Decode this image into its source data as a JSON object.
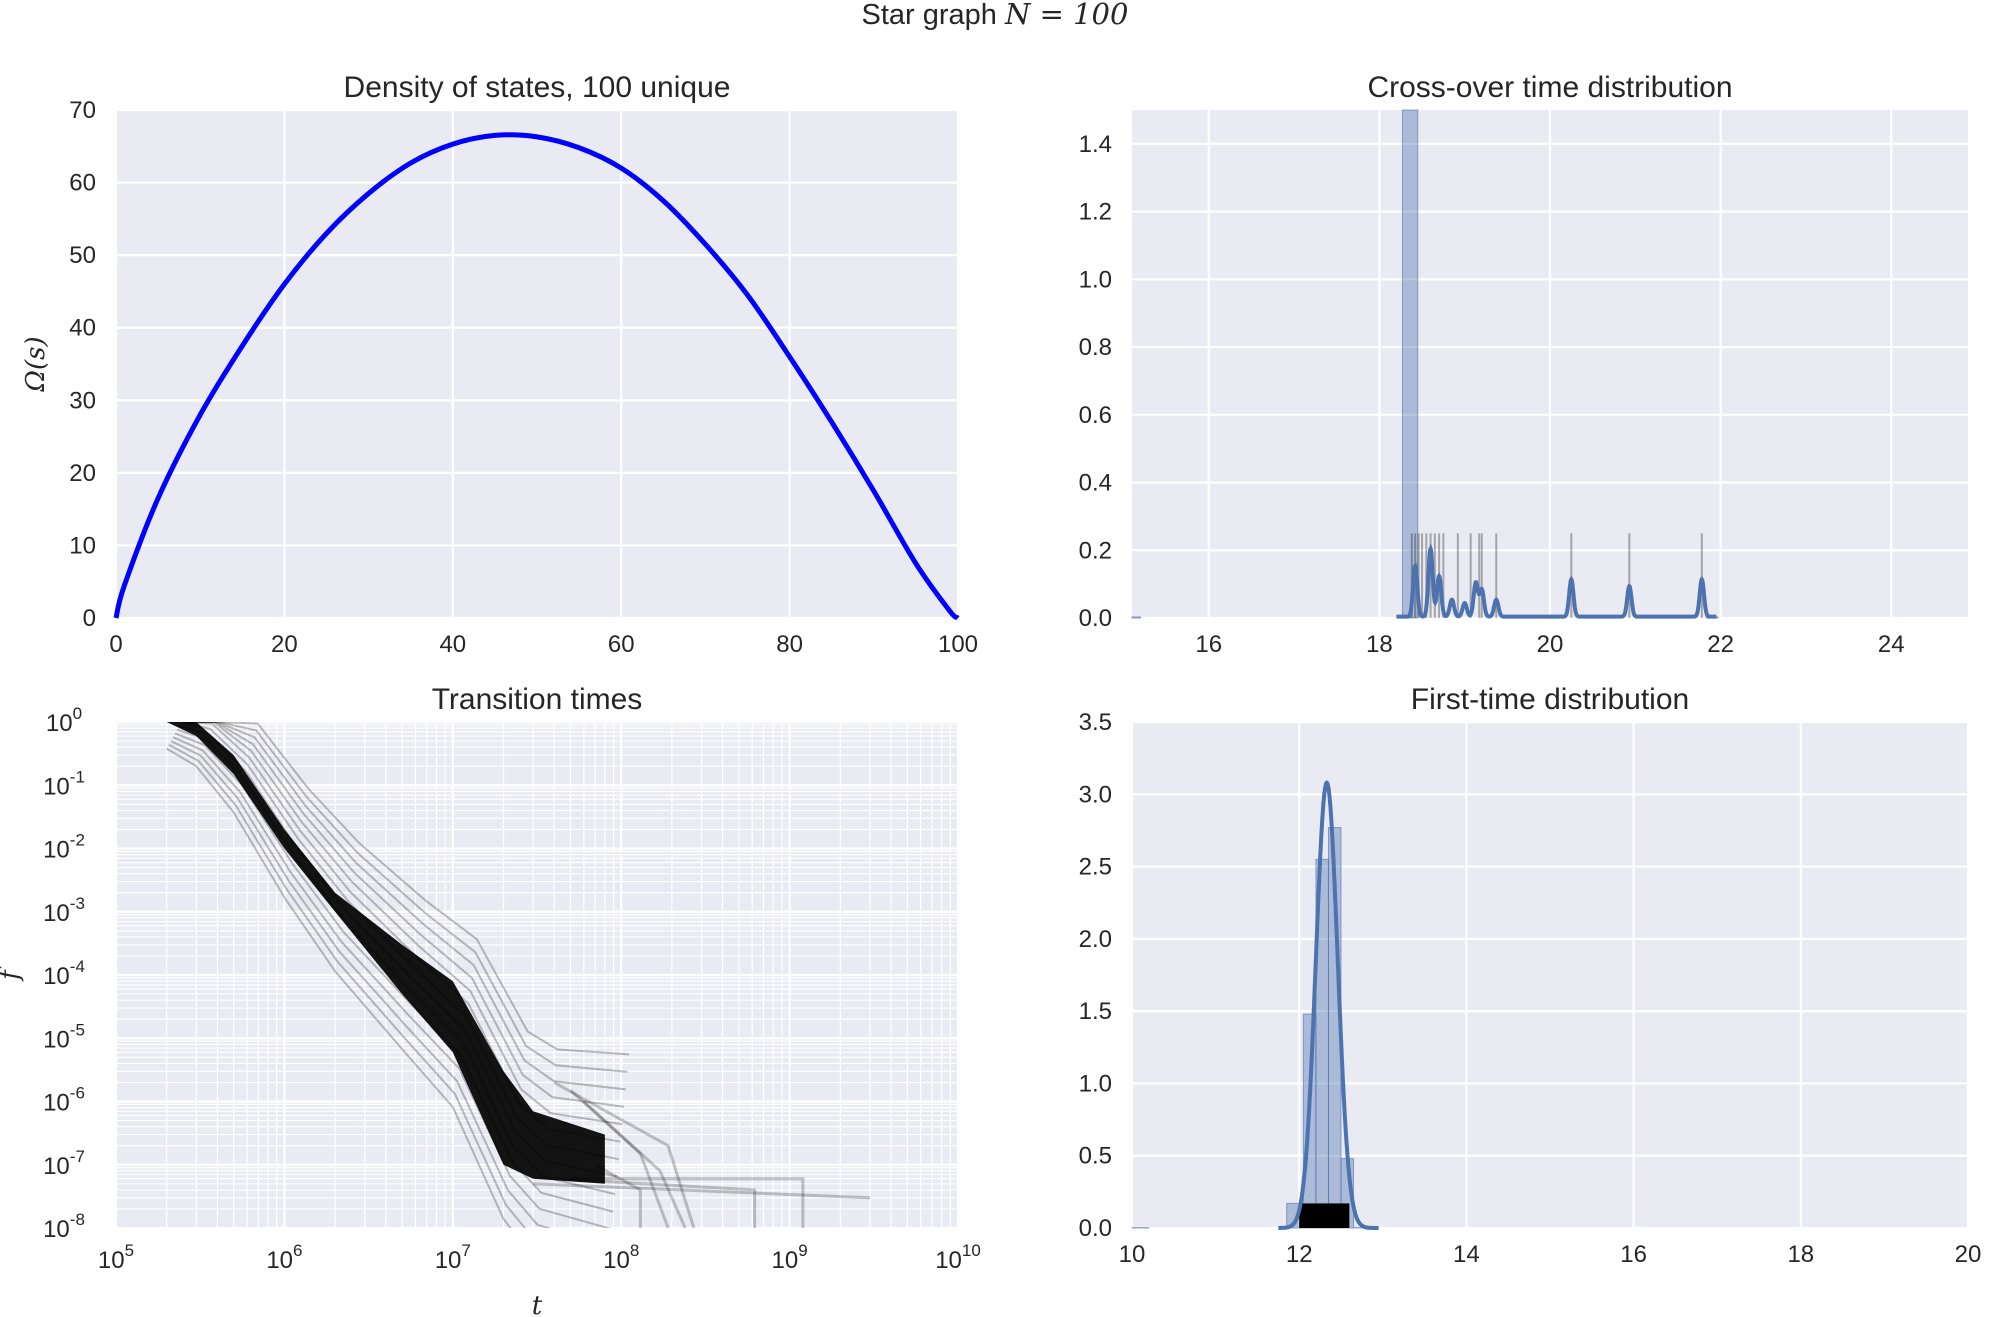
{
  "figure": {
    "suptitle_text": "Star graph ",
    "suptitle_math": "N = 100",
    "colors": {
      "axes_bg": "#eaeaf2",
      "grid": "#ffffff",
      "text": "#262626",
      "dos_line": "#0000ff",
      "kde_line": "#4c72b0",
      "hist_fill": "#4c72b0",
      "rug": "#000000",
      "paths": "#000000"
    }
  },
  "chart_data": [
    {
      "panel": "density-of-states",
      "type": "line",
      "title": "Density of states, 100 unique",
      "ylabel": "Ω(s)",
      "xlabel": "",
      "xlim": [
        0,
        100
      ],
      "ylim": [
        0,
        70
      ],
      "xticks": [
        "0",
        "20",
        "40",
        "60",
        "80",
        "100"
      ],
      "yticks": [
        "0",
        "10",
        "20",
        "30",
        "40",
        "50",
        "60",
        "70"
      ],
      "grid": true,
      "series": [
        {
          "x": [
            0,
            1,
            5,
            10,
            15,
            20,
            25,
            30,
            35,
            40,
            45,
            50,
            55,
            60,
            65,
            70,
            75,
            80,
            85,
            90,
            95,
            99,
            100
          ],
          "values": [
            0,
            4.5,
            16.5,
            28,
            37.5,
            46,
            53,
            58.5,
            62.7,
            65.3,
            66.5,
            66.3,
            64.8,
            62,
            57.5,
            51.5,
            44.5,
            36,
            27,
            17.5,
            7.5,
            1,
            0
          ]
        }
      ]
    },
    {
      "panel": "cross-over-time-distribution",
      "type": "area",
      "title": "Cross-over time distribution",
      "xlabel": "",
      "ylabel": "",
      "xlim": [
        15.1,
        24.9
      ],
      "ylim": [
        0,
        1.5
      ],
      "xticks": [
        "16",
        "18",
        "20",
        "22",
        "24"
      ],
      "yticks": [
        "0.0",
        "0.2",
        "0.4",
        "0.6",
        "0.8",
        "1.0",
        "1.2",
        "1.4"
      ],
      "grid": true,
      "histogram": [
        {
          "x0": 15.1,
          "x1": 15.2,
          "height": 0.003
        },
        {
          "x0": 18.27,
          "x1": 18.45,
          "height": 1.5
        },
        {
          "x0": 21.83,
          "x1": 21.97,
          "height": 0.003
        }
      ],
      "kde_peaks": [
        {
          "x": 18.42,
          "height": 0.15
        },
        {
          "x": 18.6,
          "height": 0.2
        },
        {
          "x": 18.7,
          "height": 0.12
        },
        {
          "x": 18.85,
          "height": 0.05
        },
        {
          "x": 19.0,
          "height": 0.04
        },
        {
          "x": 19.13,
          "height": 0.1
        },
        {
          "x": 19.2,
          "height": 0.08
        },
        {
          "x": 19.37,
          "height": 0.05
        },
        {
          "x": 20.25,
          "height": 0.11
        },
        {
          "x": 20.93,
          "height": 0.09
        },
        {
          "x": 21.78,
          "height": 0.11
        }
      ],
      "rug": [
        18.38,
        18.42,
        18.46,
        18.5,
        18.55,
        18.6,
        18.65,
        18.7,
        18.75,
        18.92,
        19.07,
        19.17,
        19.2,
        19.37,
        20.25,
        20.93,
        21.78
      ],
      "rug_height": 0.25
    },
    {
      "panel": "transition-times",
      "type": "line",
      "title": "Transition times",
      "xlabel": "t",
      "ylabel": "f",
      "xscale": "log",
      "yscale": "log",
      "xlim": [
        100000,
        10000000000
      ],
      "ylim": [
        1e-08,
        1
      ],
      "xticks": [
        {
          "base": "10",
          "exp": "5"
        },
        {
          "base": "10",
          "exp": "6"
        },
        {
          "base": "10",
          "exp": "7"
        },
        {
          "base": "10",
          "exp": "8"
        },
        {
          "base": "10",
          "exp": "9"
        },
        {
          "base": "10",
          "exp": "10"
        }
      ],
      "yticks": [
        {
          "base": "10",
          "exp": "0"
        },
        {
          "base": "10",
          "exp": "-1"
        },
        {
          "base": "10",
          "exp": "-2"
        },
        {
          "base": "10",
          "exp": "-3"
        },
        {
          "base": "10",
          "exp": "-4"
        },
        {
          "base": "10",
          "exp": "-5"
        },
        {
          "base": "10",
          "exp": "-6"
        },
        {
          "base": "10",
          "exp": "-7"
        },
        {
          "base": "10",
          "exp": "-8"
        }
      ],
      "grid": true,
      "band": {
        "t": [
          200000,
          300000,
          500000,
          1000000,
          2000000,
          5000000,
          10000000,
          20000000,
          30000000,
          80000000
        ],
        "f_hi": [
          1,
          1,
          0.3,
          0.02,
          0.002,
          0.0003,
          8e-05,
          3e-06,
          7e-07,
          3e-07
        ],
        "f_lo": [
          1,
          0.6,
          0.15,
          0.01,
          0.001,
          5e-05,
          6e-06,
          1e-07,
          6e-08,
          5e-08
        ]
      },
      "tail_paths": [
        {
          "t": [
            40000000,
            190000000,
            270000000
          ],
          "f": [
            2e-06,
            2e-07,
            1e-08
          ]
        },
        {
          "t": [
            50000000,
            130000000,
            190000000
          ],
          "f": [
            1.5e-06,
            1.5e-07,
            1e-08
          ]
        },
        {
          "t": [
            60000000,
            170000000,
            240000000
          ],
          "f": [
            1e-06,
            8e-08,
            1e-08
          ]
        },
        {
          "t": [
            50000000,
            1200000000,
            1200000000
          ],
          "f": [
            6e-08,
            6e-08,
            1e-08
          ]
        },
        {
          "t": [
            40000000,
            620000000,
            620000000
          ],
          "f": [
            6e-08,
            4e-08,
            1e-08
          ]
        },
        {
          "t": [
            30000000,
            3000000000
          ],
          "f": [
            5e-08,
            3e-08
          ]
        },
        {
          "t": [
            70000000,
            130000000,
            130000000
          ],
          "f": [
            1e-07,
            4e-08,
            1e-08
          ]
        }
      ]
    },
    {
      "panel": "first-time-distribution",
      "type": "area",
      "title": "First-time distribution",
      "xlabel": "",
      "ylabel": "",
      "xlim": [
        10,
        20
      ],
      "ylim": [
        0,
        3.5
      ],
      "xticks": [
        "10",
        "12",
        "14",
        "16",
        "18",
        "20"
      ],
      "yticks": [
        "0.0",
        "0.5",
        "1.0",
        "1.5",
        "2.0",
        "2.5",
        "3.0",
        "3.5"
      ],
      "grid": true,
      "histogram": [
        {
          "x0": 10.0,
          "x1": 10.2,
          "height": 0.003
        },
        {
          "x0": 11.85,
          "x1": 12.05,
          "height": 0.17
        },
        {
          "x0": 12.05,
          "x1": 12.2,
          "height": 1.48
        },
        {
          "x0": 12.2,
          "x1": 12.35,
          "height": 2.55
        },
        {
          "x0": 12.35,
          "x1": 12.5,
          "height": 2.77
        },
        {
          "x0": 12.5,
          "x1": 12.65,
          "height": 0.48
        },
        {
          "x0": 12.65,
          "x1": 12.85,
          "height": 0.003
        }
      ],
      "kde": {
        "mean": 12.33,
        "sd": 0.13,
        "peak": 3.08
      },
      "rug": {
        "x0": 12.0,
        "x1": 12.6,
        "height": 0.17
      }
    }
  ]
}
